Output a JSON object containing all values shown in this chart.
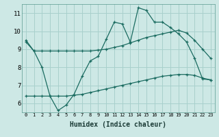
{
  "xlabel": "Humidex (Indice chaleur)",
  "background_color": "#cde8e5",
  "grid_color": "#a8d0cc",
  "line_color": "#1a6b60",
  "xlim": [
    -0.5,
    23.5
  ],
  "ylim": [
    5.5,
    11.5
  ],
  "xticks": [
    0,
    1,
    2,
    3,
    4,
    5,
    6,
    7,
    8,
    9,
    10,
    11,
    12,
    13,
    14,
    15,
    16,
    17,
    18,
    19,
    20,
    21,
    22,
    23
  ],
  "yticks": [
    6,
    7,
    8,
    9,
    10,
    11
  ],
  "line1_x": [
    0,
    1,
    2,
    3,
    4,
    5,
    6,
    7,
    8,
    9,
    10,
    11,
    12,
    13,
    14,
    15,
    16,
    17,
    18,
    19,
    20,
    21,
    22,
    23
  ],
  "line1_y": [
    9.5,
    8.9,
    8.0,
    6.4,
    5.6,
    5.9,
    6.5,
    7.5,
    8.35,
    8.6,
    9.55,
    10.5,
    10.4,
    9.4,
    11.3,
    11.15,
    10.5,
    10.5,
    10.2,
    9.85,
    9.4,
    8.5,
    7.35,
    7.3
  ],
  "line2_x": [
    0,
    1,
    2,
    3,
    4,
    5,
    6,
    7,
    8,
    9,
    10,
    11,
    12,
    13,
    14,
    15,
    16,
    17,
    18,
    19,
    20,
    21,
    22,
    23
  ],
  "line2_y": [
    9.4,
    8.9,
    8.9,
    8.9,
    8.9,
    8.9,
    8.9,
    8.9,
    8.9,
    8.95,
    9.0,
    9.1,
    9.2,
    9.35,
    9.5,
    9.65,
    9.75,
    9.85,
    9.95,
    10.05,
    9.9,
    9.5,
    9.0,
    8.5
  ],
  "line3_x": [
    0,
    1,
    2,
    3,
    4,
    5,
    6,
    7,
    8,
    9,
    10,
    11,
    12,
    13,
    14,
    15,
    16,
    17,
    18,
    19,
    20,
    21,
    22,
    23
  ],
  "line3_y": [
    6.4,
    6.4,
    6.4,
    6.4,
    6.4,
    6.4,
    6.45,
    6.5,
    6.6,
    6.7,
    6.8,
    6.9,
    7.0,
    7.1,
    7.2,
    7.3,
    7.4,
    7.5,
    7.55,
    7.6,
    7.6,
    7.55,
    7.4,
    7.3
  ]
}
